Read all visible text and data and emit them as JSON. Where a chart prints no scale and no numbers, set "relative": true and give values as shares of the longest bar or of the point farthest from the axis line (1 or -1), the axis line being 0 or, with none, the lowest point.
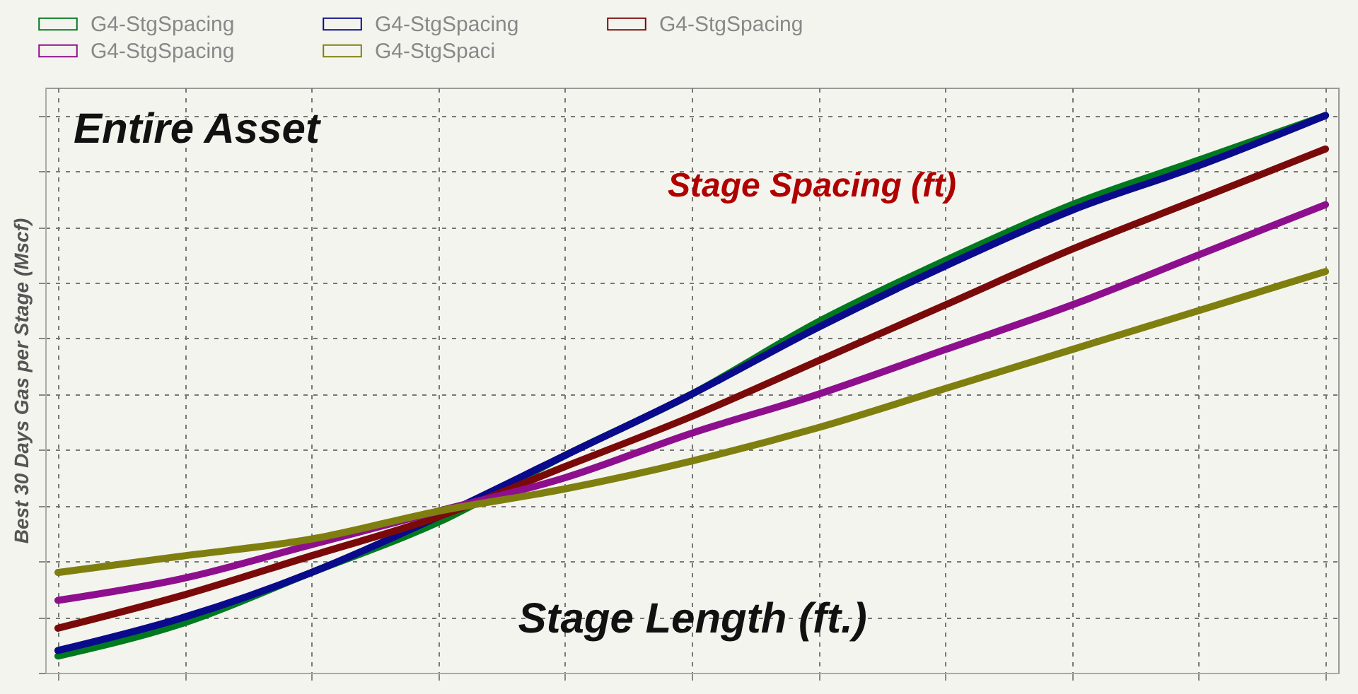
{
  "chart_data": {
    "type": "line",
    "relative": true,
    "xlabel": "Stage Length (ft.)",
    "ylabel": "Best 30 Days Gas per Stage (Mscf)",
    "annotations": [
      "Entire Asset",
      "Stage Spacing (ft)"
    ],
    "categories": [
      null,
      null,
      null,
      null,
      null,
      null,
      null,
      null,
      null,
      null,
      null
    ],
    "series": [
      {
        "name": "G4-StgSpacing",
        "color": "#007a1e",
        "values": [
          0.03,
          0.09,
          0.18,
          0.27,
          0.39,
          0.5,
          0.63,
          0.74,
          0.84,
          0.92,
          1.0
        ]
      },
      {
        "name": "G4-StgSpacing",
        "color": "#0a0a8c",
        "values": [
          0.04,
          0.1,
          0.18,
          0.28,
          0.39,
          0.5,
          0.62,
          0.73,
          0.83,
          0.91,
          1.0
        ]
      },
      {
        "name": "G4-StgSpacing",
        "color": "#7a0a0a",
        "values": [
          0.08,
          0.14,
          0.21,
          0.28,
          0.37,
          0.46,
          0.56,
          0.66,
          0.76,
          0.85,
          0.94
        ]
      },
      {
        "name": "G4-StgSpacing",
        "color": "#8e0f8e",
        "values": [
          0.13,
          0.17,
          0.23,
          0.29,
          0.35,
          0.43,
          0.5,
          0.58,
          0.66,
          0.75,
          0.84
        ]
      },
      {
        "name": "G4-StgSpaci",
        "color": "#7f7f0f",
        "values": [
          0.18,
          0.21,
          0.24,
          0.29,
          0.33,
          0.38,
          0.44,
          0.51,
          0.58,
          0.65,
          0.72
        ]
      }
    ],
    "grid": true,
    "legend": "top",
    "line_style": "solid",
    "marker": "none"
  }
}
